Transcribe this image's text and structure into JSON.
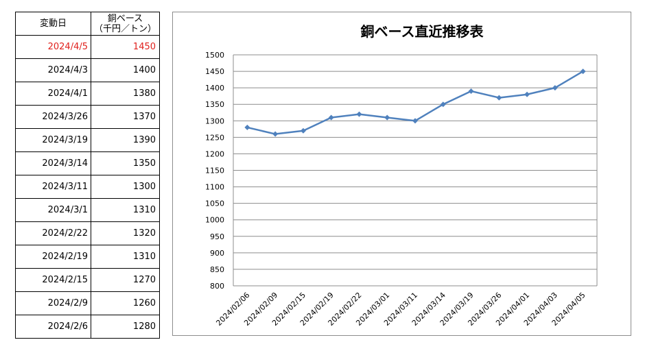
{
  "table": {
    "header": {
      "date": "変動日",
      "value_line1": "銅ベース",
      "value_line2": "（千円／トン）"
    },
    "rows": [
      {
        "date": "2024/4/5",
        "value": "1450"
      },
      {
        "date": "2024/4/3",
        "value": "1400"
      },
      {
        "date": "2024/4/1",
        "value": "1380"
      },
      {
        "date": "2024/3/26",
        "value": "1370"
      },
      {
        "date": "2024/3/19",
        "value": "1390"
      },
      {
        "date": "2024/3/14",
        "value": "1350"
      },
      {
        "date": "2024/3/11",
        "value": "1300"
      },
      {
        "date": "2024/3/1",
        "value": "1310"
      },
      {
        "date": "2024/2/22",
        "value": "1320"
      },
      {
        "date": "2024/2/19",
        "value": "1310"
      },
      {
        "date": "2024/2/15",
        "value": "1270"
      },
      {
        "date": "2024/2/9",
        "value": "1260"
      },
      {
        "date": "2024/2/6",
        "value": "1280"
      }
    ],
    "latest_color": "#e0201c"
  },
  "chart_data": {
    "type": "line",
    "title": "銅ベース直近推移表",
    "xlabel": "",
    "ylabel": "",
    "categories": [
      "2024/02/06",
      "2024/02/09",
      "2024/02/15",
      "2024/02/19",
      "2024/02/22",
      "2024/03/01",
      "2024/03/11",
      "2024/03/14",
      "2024/03/19",
      "2024/03/26",
      "2024/04/01",
      "2024/04/03",
      "2024/04/05"
    ],
    "series": [
      {
        "values": [
          1280,
          1260,
          1270,
          1310,
          1320,
          1310,
          1300,
          1350,
          1390,
          1370,
          1380,
          1400,
          1450
        ],
        "color": "#4f81bd",
        "marker": "diamond"
      }
    ],
    "ylim": [
      800,
      1500
    ],
    "ystep": 50,
    "grid": true,
    "legend": "none"
  }
}
